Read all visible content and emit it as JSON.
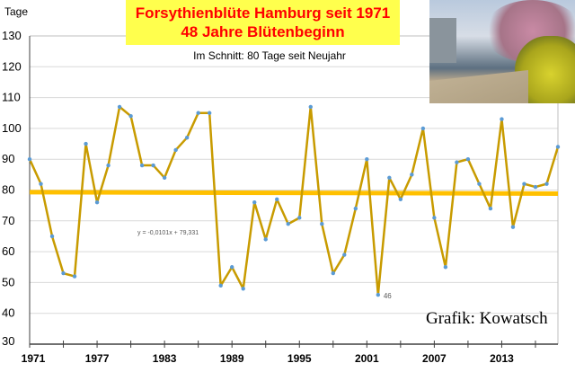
{
  "chart_data": {
    "type": "line",
    "title": "Forsythienblüte Hamburg seit 1971",
    "subtitle": "48 Jahre Blütenbeginn",
    "annotation": "Im Schnitt: 80 Tage seit Neujahr",
    "ylabel": "Tage",
    "xlabel": "",
    "ylim": [
      30,
      130
    ],
    "yticks": [
      "30",
      "40",
      "50",
      "60",
      "70",
      "80",
      "90",
      "100",
      "110",
      "120",
      "130"
    ],
    "xticks": [
      "1971",
      "1977",
      "1983",
      "1989",
      "1995",
      "2001",
      "2007",
      "2013"
    ],
    "grid": true,
    "x": [
      1971,
      1972,
      1973,
      1974,
      1975,
      1976,
      1977,
      1978,
      1979,
      1980,
      1981,
      1982,
      1983,
      1984,
      1985,
      1986,
      1987,
      1988,
      1989,
      1990,
      1991,
      1992,
      1993,
      1994,
      1995,
      1996,
      1997,
      1998,
      1999,
      2000,
      2001,
      2002,
      2003,
      2004,
      2005,
      2006,
      2007,
      2008,
      2009,
      2010,
      2011,
      2012,
      2013,
      2014,
      2015,
      2016,
      2017,
      2018
    ],
    "series": [
      {
        "name": "Blütenbeginn",
        "values": [
          90,
          82,
          65,
          53,
          52,
          95,
          76,
          88,
          107,
          104,
          88,
          88,
          84,
          93,
          97,
          105,
          105,
          49,
          55,
          48,
          76,
          64,
          77,
          69,
          71,
          107,
          69,
          53,
          59,
          74,
          90,
          46,
          84,
          77,
          85,
          100,
          71,
          55,
          89,
          90,
          82,
          74,
          103,
          68,
          82,
          81,
          82,
          94
        ]
      }
    ],
    "trendline": {
      "equation": "y = -0,0101x + 79,331",
      "slope": -0.0101,
      "intercept": 79.331
    },
    "data_label": {
      "year": 2002,
      "text": "46"
    },
    "colors": {
      "line": "#c89b00",
      "marker": "#5b9bd5",
      "trend": "#ffc000",
      "title_bg": "#ffff4d",
      "title_text": "#ff0000"
    }
  },
  "credit": "Grafik: Kowatsch"
}
